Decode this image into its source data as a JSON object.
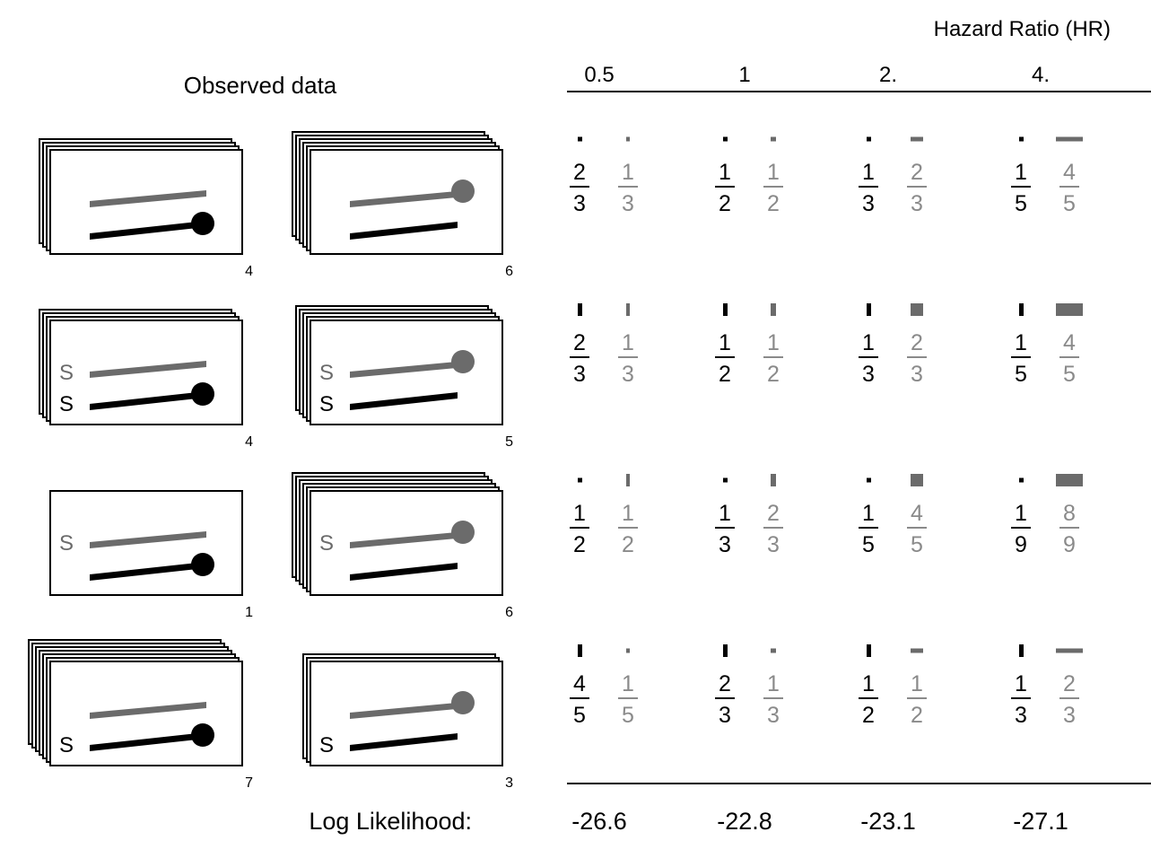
{
  "colors": {
    "black": "#000000",
    "grey": "#6b6b6b",
    "light_grey": "#8a8a8a"
  },
  "header": {
    "hr_title": "Hazard Ratio (HR)",
    "observed_title": "Observed data",
    "hr_values": [
      "0.5",
      "1",
      "2.",
      "4."
    ]
  },
  "rows": [
    {
      "left": {
        "count_label": "4",
        "stack": 4,
        "event": "black",
        "s_black": false,
        "s_grey": false
      },
      "right": {
        "count_label": "6",
        "stack": 6,
        "event": "grey",
        "s_black": false,
        "s_grey": false
      },
      "cells": [
        {
          "black": {
            "num": "2",
            "den": "3"
          },
          "grey": {
            "num": "1",
            "den": "3"
          }
        },
        {
          "black": {
            "num": "1",
            "den": "2"
          },
          "grey": {
            "num": "1",
            "den": "2"
          }
        },
        {
          "black": {
            "num": "1",
            "den": "3"
          },
          "grey": {
            "num": "2",
            "den": "3"
          }
        },
        {
          "black": {
            "num": "1",
            "den": "5"
          },
          "grey": {
            "num": "4",
            "den": "5"
          }
        }
      ]
    },
    {
      "left": {
        "count_label": "4",
        "stack": 4,
        "event": "black",
        "s_black": true,
        "s_grey": true
      },
      "right": {
        "count_label": "5",
        "stack": 5,
        "event": "grey",
        "s_black": true,
        "s_grey": true
      },
      "cells": [
        {
          "black": {
            "num": "2",
            "den": "3"
          },
          "grey": {
            "num": "1",
            "den": "3"
          }
        },
        {
          "black": {
            "num": "1",
            "den": "2"
          },
          "grey": {
            "num": "1",
            "den": "2"
          }
        },
        {
          "black": {
            "num": "1",
            "den": "3"
          },
          "grey": {
            "num": "2",
            "den": "3"
          }
        },
        {
          "black": {
            "num": "1",
            "den": "5"
          },
          "grey": {
            "num": "4",
            "den": "5"
          }
        }
      ]
    },
    {
      "left": {
        "count_label": "1",
        "stack": 1,
        "event": "black",
        "s_black": false,
        "s_grey": true
      },
      "right": {
        "count_label": "6",
        "stack": 6,
        "event": "grey",
        "s_black": false,
        "s_grey": true
      },
      "cells": [
        {
          "black": {
            "num": "1",
            "den": "2"
          },
          "grey": {
            "num": "1",
            "den": "2"
          }
        },
        {
          "black": {
            "num": "1",
            "den": "3"
          },
          "grey": {
            "num": "2",
            "den": "3"
          }
        },
        {
          "black": {
            "num": "1",
            "den": "5"
          },
          "grey": {
            "num": "4",
            "den": "5"
          }
        },
        {
          "black": {
            "num": "1",
            "den": "9"
          },
          "grey": {
            "num": "8",
            "den": "9"
          }
        }
      ]
    },
    {
      "left": {
        "count_label": "7",
        "stack": 7,
        "event": "black",
        "s_black": true,
        "s_grey": false
      },
      "right": {
        "count_label": "3",
        "stack": 3,
        "event": "grey",
        "s_black": true,
        "s_grey": false
      },
      "cells": [
        {
          "black": {
            "num": "4",
            "den": "5"
          },
          "grey": {
            "num": "1",
            "den": "5"
          }
        },
        {
          "black": {
            "num": "2",
            "den": "3"
          },
          "grey": {
            "num": "1",
            "den": "3"
          }
        },
        {
          "black": {
            "num": "1",
            "den": "2"
          },
          "grey": {
            "num": "1",
            "den": "2"
          }
        },
        {
          "black": {
            "num": "1",
            "den": "3"
          },
          "grey": {
            "num": "2",
            "den": "3"
          }
        }
      ]
    }
  ],
  "s_label": "S",
  "footer": {
    "log_likelihood_label": "Log Likelihood:",
    "log_likelihood_values": [
      "-26.6",
      "-22.8",
      "-23.1",
      "-27.1"
    ]
  }
}
